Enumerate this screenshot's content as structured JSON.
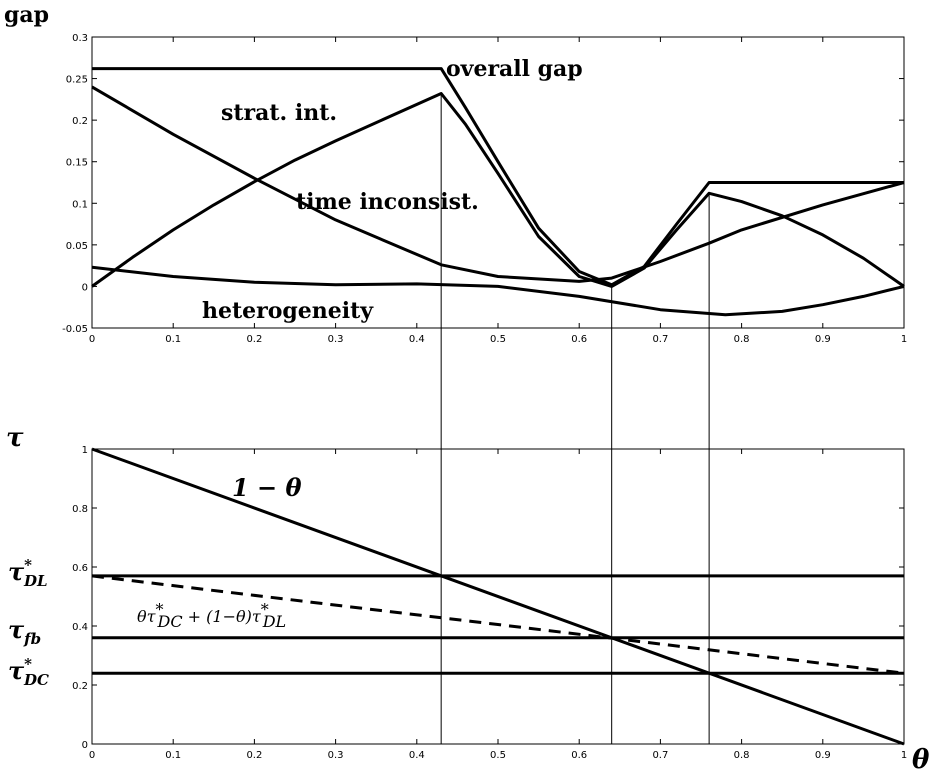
{
  "chart_data": [
    {
      "type": "line",
      "ylabel": "gap",
      "xlim": [
        0,
        1
      ],
      "ylim": [
        -0.05,
        0.3
      ],
      "grid": false,
      "x_ticks": [
        "0",
        "0.1",
        "0.2",
        "0.3",
        "0.4",
        "0.5",
        "0.6",
        "0.7",
        "0.8",
        "0.9",
        "1"
      ],
      "y_ticks": [
        "-0.05",
        "0",
        "0.05",
        "0.1",
        "0.15",
        "0.2",
        "0.25",
        "0.3"
      ],
      "series": [
        {
          "name": "overall gap",
          "x": [
            0,
            0.43,
            0.46,
            0.5,
            0.55,
            0.6,
            0.64,
            0.68,
            0.72,
            0.76,
            1.0
          ],
          "y": [
            0.262,
            0.262,
            0.215,
            0.15,
            0.07,
            0.018,
            0.002,
            0.024,
            0.075,
            0.125,
            0.125
          ]
        },
        {
          "name": "strat. int.",
          "x": [
            0,
            0.05,
            0.1,
            0.15,
            0.2,
            0.25,
            0.3,
            0.35,
            0.43,
            0.46,
            0.5,
            0.55,
            0.6,
            0.64,
            0.68,
            0.72,
            0.76,
            0.8,
            0.85,
            0.9,
            0.95,
            1.0
          ],
          "y": [
            0.0,
            0.035,
            0.068,
            0.098,
            0.126,
            0.152,
            0.175,
            0.197,
            0.232,
            0.195,
            0.136,
            0.06,
            0.012,
            0.0,
            0.022,
            0.068,
            0.112,
            0.102,
            0.085,
            0.062,
            0.034,
            0.0
          ]
        },
        {
          "name": "time inconsist.",
          "x": [
            0,
            0.1,
            0.2,
            0.3,
            0.43,
            0.5,
            0.6,
            0.64,
            0.7,
            0.76,
            0.8,
            0.9,
            1.0
          ],
          "y": [
            0.24,
            0.183,
            0.13,
            0.08,
            0.026,
            0.012,
            0.006,
            0.01,
            0.03,
            0.052,
            0.068,
            0.098,
            0.125
          ]
        },
        {
          "name": "heterogeneity",
          "x": [
            0,
            0.1,
            0.2,
            0.3,
            0.4,
            0.5,
            0.6,
            0.7,
            0.78,
            0.85,
            0.9,
            0.95,
            1.0
          ],
          "y": [
            0.023,
            0.012,
            0.005,
            0.002,
            0.003,
            0.0,
            -0.012,
            -0.028,
            -0.034,
            -0.03,
            -0.022,
            -0.012,
            0.0
          ]
        }
      ],
      "annotations": [
        "overall gap",
        "strat. int.",
        "time inconsist.",
        "heterogeneity"
      ]
    },
    {
      "type": "line",
      "ylabel": "τ",
      "xlabel": "θ",
      "xlim": [
        0,
        1
      ],
      "ylim": [
        0,
        1
      ],
      "grid": false,
      "x_ticks": [
        "0",
        "0.1",
        "0.2",
        "0.3",
        "0.4",
        "0.5",
        "0.6",
        "0.7",
        "0.8",
        "0.9",
        "1"
      ],
      "y_ticks": [
        "0",
        "0.2",
        "0.4",
        "0.6",
        "0.8",
        "1"
      ],
      "series": [
        {
          "name": "1 − θ",
          "x": [
            0,
            1
          ],
          "y": [
            1,
            0
          ]
        },
        {
          "name": "τ*DL",
          "x": [
            0,
            1
          ],
          "y": [
            0.57,
            0.57
          ]
        },
        {
          "name": "τfb",
          "x": [
            0,
            1
          ],
          "y": [
            0.36,
            0.36
          ]
        },
        {
          "name": "τ*DC",
          "x": [
            0,
            1
          ],
          "y": [
            0.24,
            0.24
          ]
        },
        {
          "name": "θτ*DC + (1−θ)τ*DL",
          "x": [
            0,
            1
          ],
          "y": [
            0.57,
            0.24
          ],
          "dashed": true
        }
      ],
      "annotations": [
        "1 − θ",
        "θτ*DC + (1−θ)τ*DL",
        "τ*DL",
        "τfb",
        "τ*DC"
      ]
    }
  ],
  "vlines_x": [
    0.43,
    0.64,
    0.76
  ],
  "labels": {
    "gap": "gap",
    "tau": "τ",
    "theta": "θ",
    "overall_gap": "overall gap",
    "strat_int": "strat.  int.",
    "time_inconsist": "time inconsist.",
    "heterogeneity": "heterogeneity",
    "one_minus_theta": "1 − θ",
    "tau_dl_base": "τ",
    "tau_dl_sup": "*",
    "tau_dl_sub": "DL",
    "tau_fb_base": "τ",
    "tau_fb_sub": "fb",
    "tau_dc_base": "τ",
    "tau_dc_sup": "*",
    "tau_dc_sub": "DC",
    "mix_a": "θτ",
    "mix_sup1": "*",
    "mix_sub1": "DC",
    "mix_b": " + (1−θ)τ",
    "mix_sup2": "*",
    "mix_sub2": "DL"
  }
}
